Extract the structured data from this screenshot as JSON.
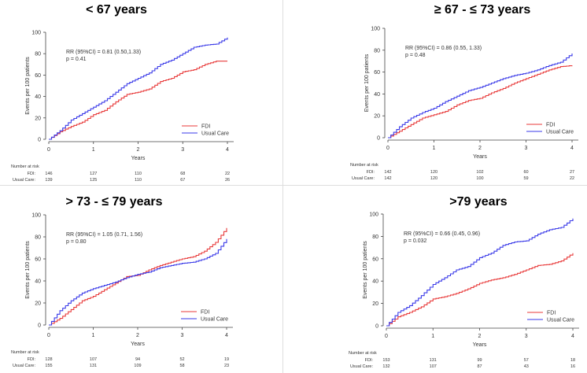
{
  "chart_data": [
    {
      "type": "line",
      "title": "< 67 years",
      "xlabel": "Years",
      "ylabel": "Events per 100 patients",
      "xlim": [
        0,
        4
      ],
      "ylim": [
        0,
        100
      ],
      "xticks": [
        "0",
        "1",
        "2",
        "3",
        "4"
      ],
      "yticks": [
        "0",
        "20",
        "40",
        "60",
        "80",
        "100"
      ],
      "annotation": [
        "RR (95%CI) = 0.81 (0.50,1.33)",
        "p = 0.41"
      ],
      "legend_position": "bottom-right",
      "x": [
        0,
        0.25,
        0.5,
        0.75,
        1,
        1.25,
        1.5,
        1.75,
        2,
        2.25,
        2.5,
        2.75,
        3,
        3.25,
        3.5,
        3.75,
        4
      ],
      "series": [
        {
          "name": "FDI",
          "color": "#e83a3a",
          "values": [
            0,
            7,
            12,
            16,
            23,
            27,
            35,
            42,
            44,
            47,
            54,
            57,
            63,
            65,
            70,
            73,
            73
          ]
        },
        {
          "name": "Usual Care",
          "color": "#3a3ae8",
          "values": [
            0,
            8,
            18,
            24,
            30,
            36,
            44,
            52,
            57,
            62,
            70,
            74,
            80,
            86,
            88,
            89,
            95
          ]
        }
      ],
      "risk": {
        "label": "Number at risk",
        "rows": [
          {
            "name": "FDI:",
            "values": [
              "146",
              "127",
              "110",
              "68",
              "22"
            ]
          },
          {
            "name": "Usual Care:",
            "values": [
              "139",
              "125",
              "110",
              "67",
              "26"
            ]
          }
        ]
      }
    },
    {
      "type": "line",
      "title": "≥ 67 - ≤ 73 years",
      "xlabel": "Years",
      "ylabel": "Events per 100 patients",
      "xlim": [
        0,
        4
      ],
      "ylim": [
        0,
        100
      ],
      "xticks": [
        "0",
        "1",
        "2",
        "3",
        "4"
      ],
      "yticks": [
        "0",
        "20",
        "40",
        "60",
        "80",
        "100"
      ],
      "annotation": [
        "RR (95%CI) = 0.86 (0.55, 1.33)",
        "p = 0.48"
      ],
      "legend_position": "bottom-right",
      "x": [
        0,
        0.25,
        0.5,
        0.75,
        1,
        1.25,
        1.5,
        1.75,
        2,
        2.25,
        2.5,
        2.75,
        3,
        3.25,
        3.5,
        3.75,
        4
      ],
      "series": [
        {
          "name": "FDI",
          "color": "#e83a3a",
          "values": [
            0,
            6,
            12,
            18,
            21,
            24,
            30,
            34,
            36,
            41,
            45,
            50,
            54,
            58,
            62,
            65,
            66
          ]
        },
        {
          "name": "Usual Care",
          "color": "#3a3ae8",
          "values": [
            0,
            10,
            18,
            23,
            27,
            33,
            38,
            43,
            46,
            50,
            54,
            57,
            59,
            62,
            66,
            69,
            77
          ]
        }
      ],
      "risk": {
        "label": "Number at risk",
        "rows": [
          {
            "name": "FDI:",
            "values": [
              "142",
              "120",
              "102",
              "60",
              "27"
            ]
          },
          {
            "name": "Usual Care:",
            "values": [
              "142",
              "120",
              "100",
              "59",
              "22"
            ]
          }
        ]
      }
    },
    {
      "type": "line",
      "title": "> 73 - ≤ 79 years",
      "xlabel": "Years",
      "ylabel": "Events per 100 patients",
      "xlim": [
        0,
        4
      ],
      "ylim": [
        0,
        100
      ],
      "xticks": [
        "0",
        "1",
        "2",
        "3",
        "4"
      ],
      "yticks": [
        "0",
        "20",
        "40",
        "60",
        "80",
        "100"
      ],
      "annotation": [
        "RR (95%CI) = 1.05 (0.71, 1.56)",
        "p = 0.80"
      ],
      "legend_position": "bottom-right",
      "x": [
        0,
        0.25,
        0.5,
        0.75,
        1,
        1.25,
        1.5,
        1.75,
        2,
        2.25,
        2.5,
        2.75,
        3,
        3.25,
        3.5,
        3.75,
        4
      ],
      "series": [
        {
          "name": "FDI",
          "color": "#e83a3a",
          "values": [
            0,
            6,
            14,
            22,
            26,
            32,
            38,
            44,
            45,
            50,
            54,
            57,
            60,
            62,
            67,
            75,
            88
          ]
        },
        {
          "name": "Usual Care",
          "color": "#3a3ae8",
          "values": [
            0,
            13,
            22,
            29,
            33,
            36,
            39,
            43,
            46,
            48,
            52,
            54,
            56,
            57,
            60,
            65,
            78
          ]
        }
      ],
      "risk": {
        "label": "Number at risk",
        "rows": [
          {
            "name": "FDI:",
            "values": [
              "128",
              "107",
              "94",
              "52",
              "19"
            ]
          },
          {
            "name": "Usual Care:",
            "values": [
              "155",
              "131",
              "109",
              "58",
              "23"
            ]
          }
        ]
      }
    },
    {
      "type": "line",
      "title": ">79 years",
      "xlabel": "Years",
      "ylabel": "Events per 100 patients",
      "xlim": [
        0,
        4
      ],
      "ylim": [
        0,
        100
      ],
      "xticks": [
        "0",
        "1",
        "2",
        "3",
        "4"
      ],
      "yticks": [
        "0",
        "20",
        "40",
        "60",
        "80",
        "100"
      ],
      "annotation": [
        "RR (95%CI) = 0.66 (0.45, 0.96)",
        "p = 0.032"
      ],
      "legend_position": "bottom-right",
      "x": [
        0,
        0.25,
        0.5,
        0.75,
        1,
        1.25,
        1.5,
        1.75,
        2,
        2.25,
        2.5,
        2.75,
        3,
        3.25,
        3.5,
        3.75,
        4
      ],
      "series": [
        {
          "name": "FDI",
          "color": "#e83a3a",
          "values": [
            0,
            8,
            12,
            17,
            24,
            26,
            29,
            33,
            38,
            41,
            43,
            46,
            50,
            54,
            55,
            58,
            65
          ]
        },
        {
          "name": "Usual Care",
          "color": "#3a3ae8",
          "values": [
            0,
            12,
            18,
            27,
            37,
            43,
            50,
            53,
            61,
            65,
            72,
            75,
            76,
            82,
            86,
            88,
            96
          ]
        }
      ],
      "risk": {
        "label": "Number at risk",
        "rows": [
          {
            "name": "FDI:",
            "values": [
              "153",
              "131",
              "99",
              "57",
              "18"
            ]
          },
          {
            "name": "Usual Care:",
            "values": [
              "132",
              "107",
              "87",
              "43",
              "16"
            ]
          }
        ]
      }
    }
  ]
}
